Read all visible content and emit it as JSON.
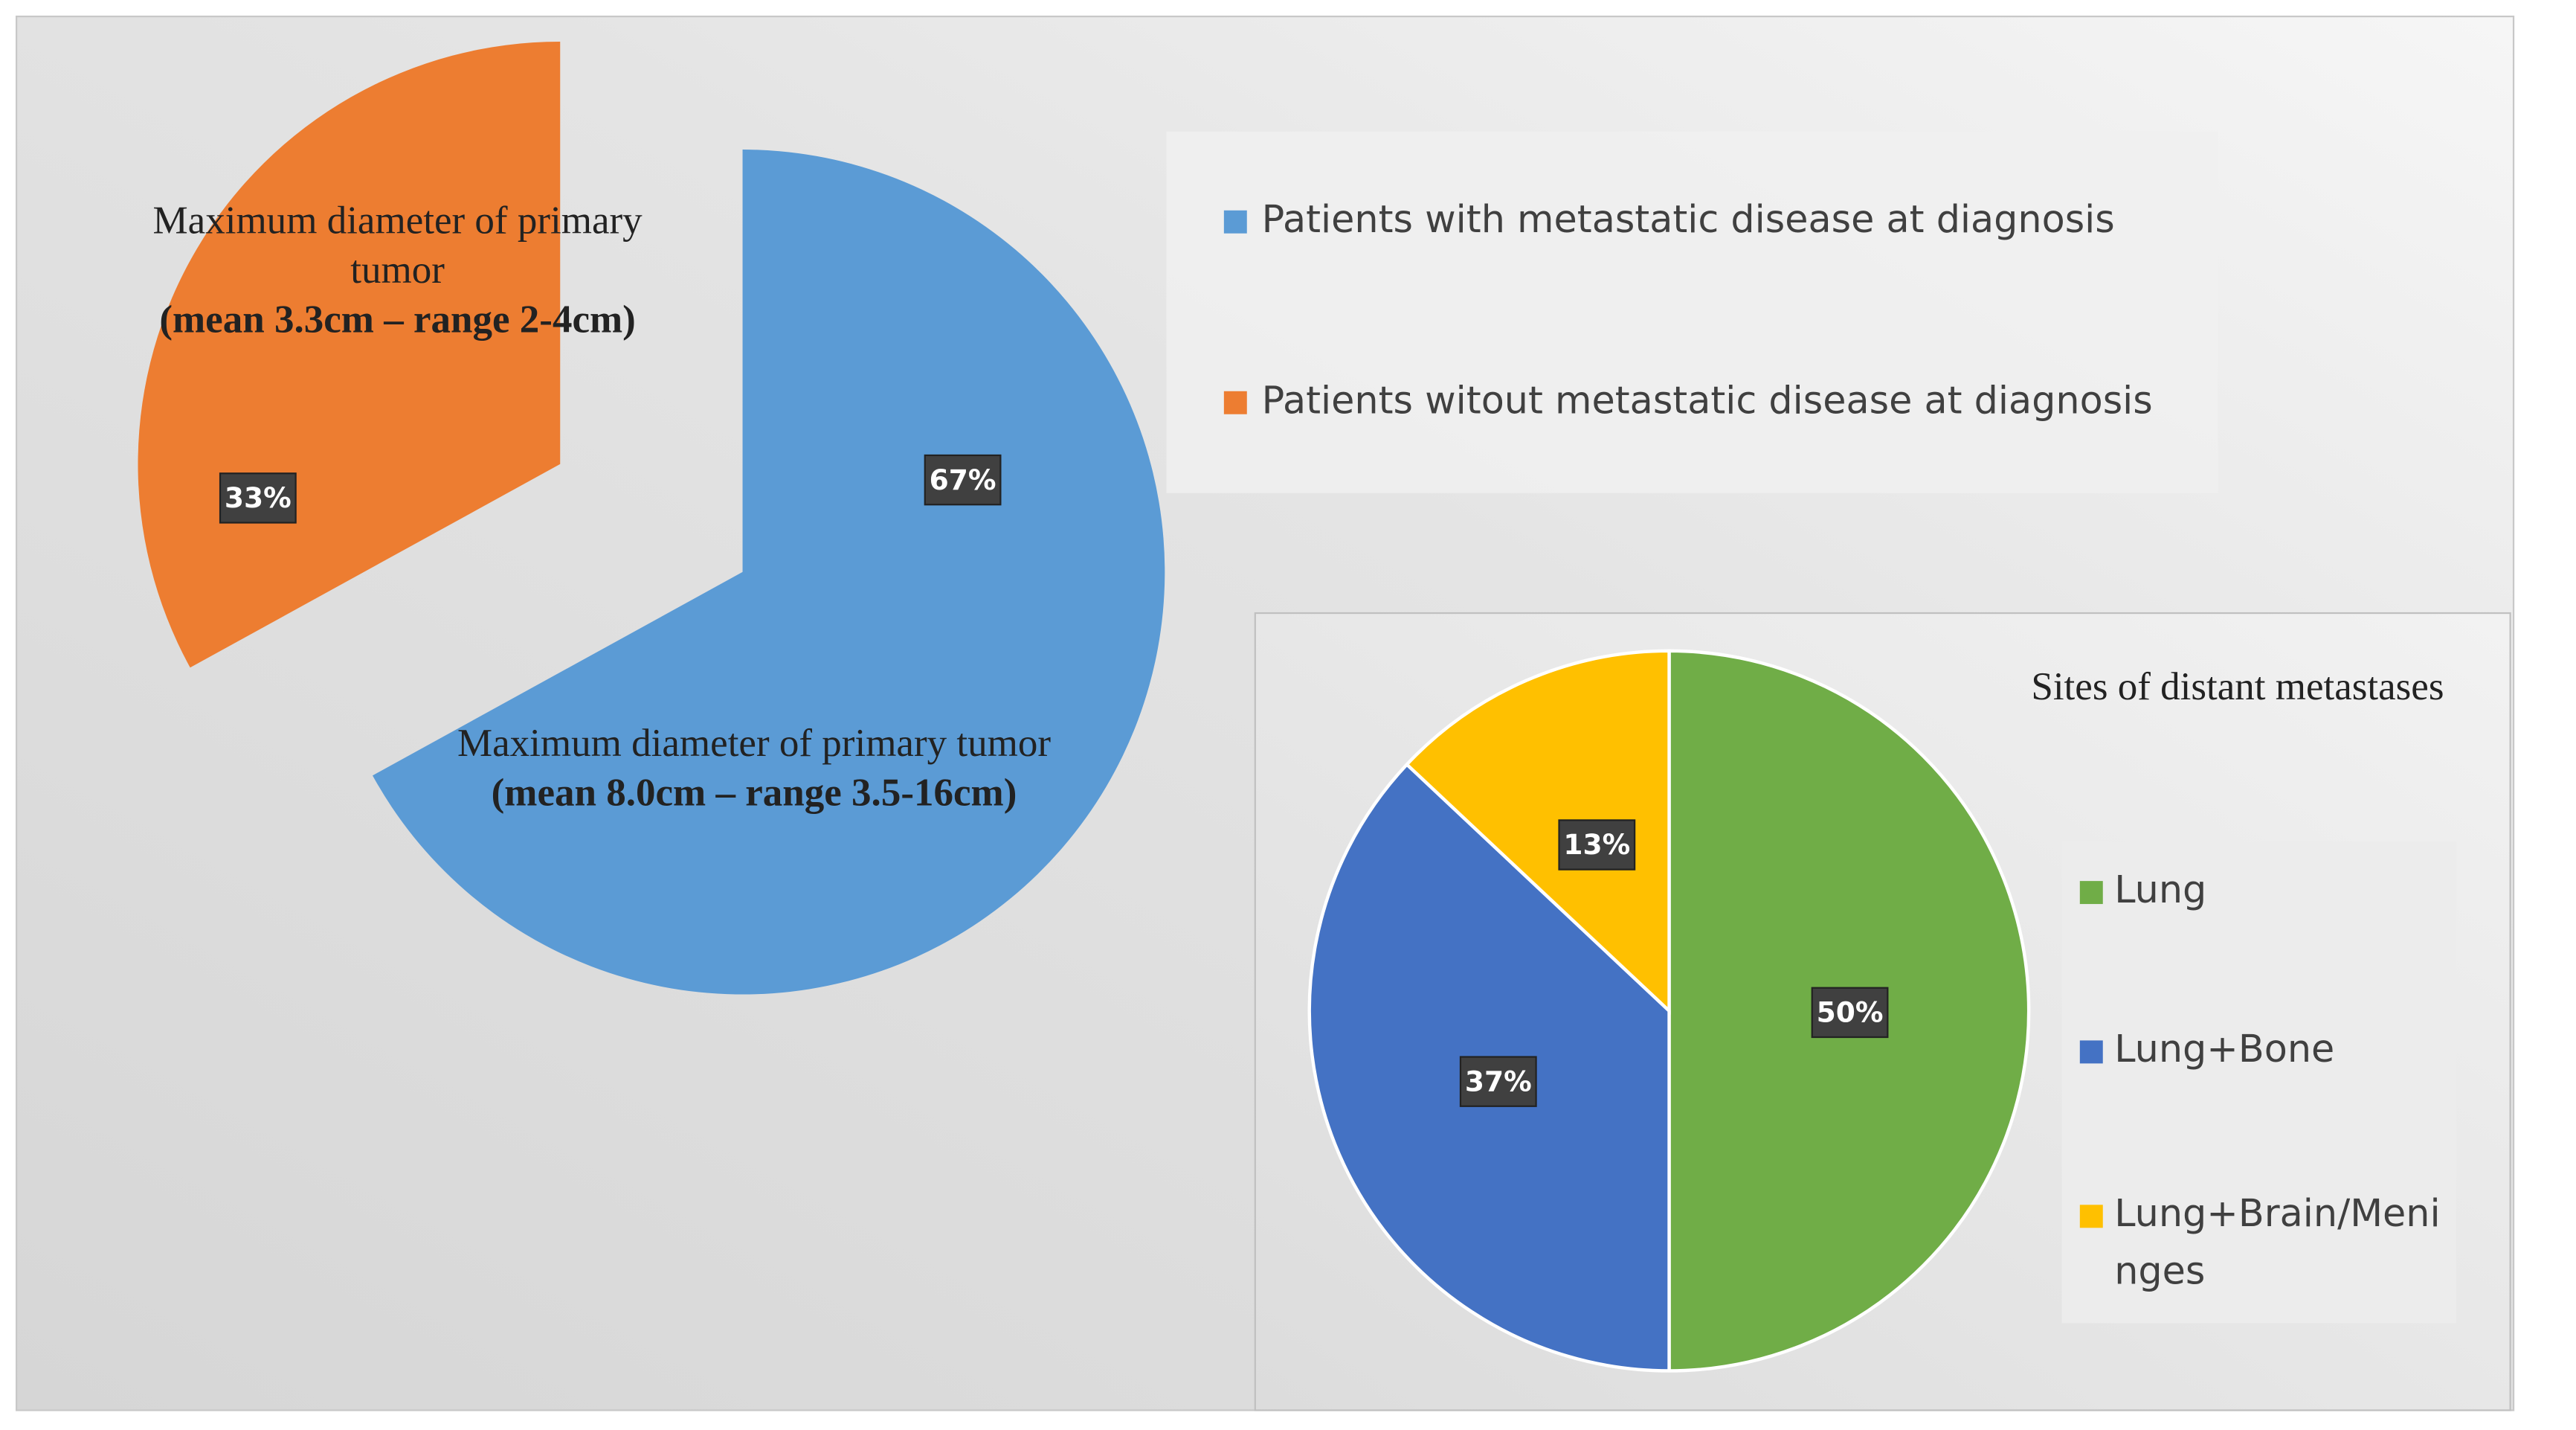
{
  "chart_data": [
    {
      "type": "pie",
      "categories": [
        "Patients with metastatic disease at diagnosis",
        "Patients witout metastatic disease at diagnosis"
      ],
      "values": [
        67,
        33
      ],
      "value_labels": [
        "67%",
        "33%"
      ],
      "colors": [
        "#5b9bd5",
        "#ed7d31"
      ],
      "slice_annotations": [
        {
          "title": "Maximum diameter of primary tumor",
          "detail": "(mean 8.0cm – range 3.5-16cm)"
        },
        {
          "title": "Maximum diameter of primary tumor",
          "detail": "(mean 3.3cm – range 2-4cm)"
        }
      ]
    },
    {
      "type": "pie",
      "title": "Sites of distant metastases",
      "categories": [
        "Lung",
        "Lung+Bone",
        "Lung+Brain/Meninges"
      ],
      "values": [
        50,
        37,
        13
      ],
      "value_labels": [
        "50%",
        "37%",
        "13%"
      ],
      "colors": [
        "#70ad47",
        "#4472c4",
        "#ffc000"
      ]
    }
  ]
}
